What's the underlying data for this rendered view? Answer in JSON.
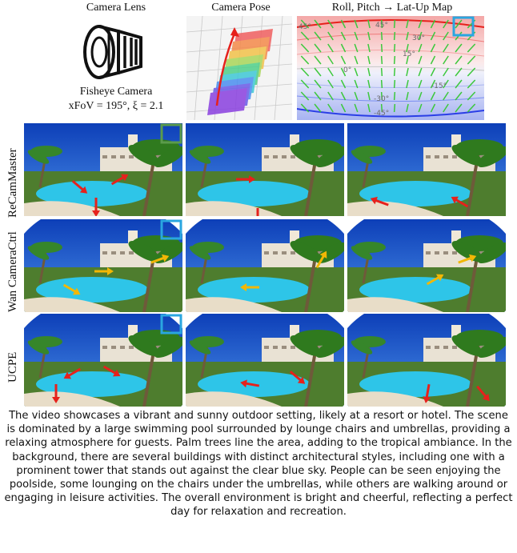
{
  "headers": {
    "lens": "Camera Lens",
    "pose": "Camera Pose",
    "map": "Roll, Pitch → Lat-Up Map"
  },
  "lens": {
    "name": "Fisheye Camera",
    "params": "xFoV = 195°, ξ = 2.1"
  },
  "map_labels": [
    "45°",
    "30°",
    "15°",
    "0°",
    "-15°",
    "-30°",
    "-45°",
    "45°"
  ],
  "rows": [
    {
      "label": "ReCamMaster",
      "highlight_color": "#5b9b4b"
    },
    {
      "label": "Wan CameraCtrl",
      "highlight_color": "#2aa6e0"
    },
    {
      "label": "UCPE",
      "highlight_color": "#2aa6e0"
    }
  ],
  "colors": {
    "map_highlight": "#2aa6e0",
    "arrow_red": "#e6211c",
    "arrow_yellow": "#f2b705"
  },
  "caption": "The video showcases a vibrant and sunny outdoor setting, likely at a resort or hotel. The scene is dominated by a large swimming pool surrounded by lounge chairs and umbrellas, providing a relaxing atmosphere for guests. Palm trees line the area, adding to the tropical ambiance. In the background, there are several buildings with distinct architectural styles, including one with a prominent tower that stands out against the clear blue sky. People can be seen enjoying the poolside, some lounging on the chairs under the umbrellas, while others are walking around or engaging in leisure activities. The overall environment is bright and cheerful, reflecting a perfect day for relaxation and recreation."
}
